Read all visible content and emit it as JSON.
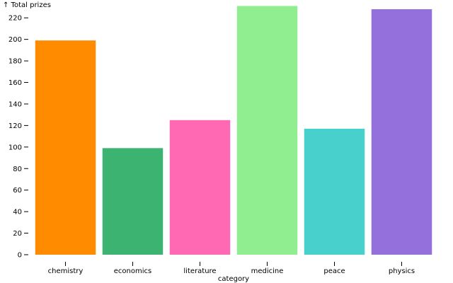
{
  "chart_data": {
    "type": "bar",
    "title": "",
    "ylabel": "↑ Total prizes",
    "xlabel": "category",
    "categories": [
      "chemistry",
      "economics",
      "literature",
      "medicine",
      "peace",
      "physics"
    ],
    "values": [
      199,
      99,
      125,
      231,
      117,
      228
    ],
    "colors": [
      "#ff8c00",
      "#3cb371",
      "#ff69b4",
      "#90ee90",
      "#48d1cc",
      "#9370db"
    ],
    "ylim": [
      0,
      230
    ],
    "yticks": [
      0,
      20,
      40,
      60,
      80,
      100,
      120,
      140,
      160,
      180,
      200,
      220
    ],
    "grid": false,
    "legend": "none"
  }
}
